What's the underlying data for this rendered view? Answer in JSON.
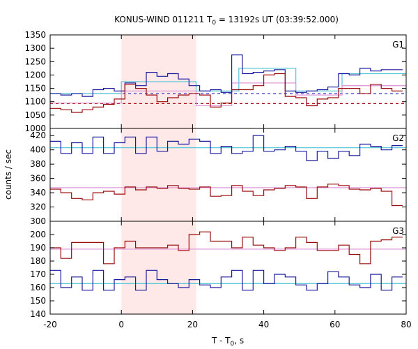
{
  "chart_data": {
    "type": "line",
    "title": "KONUS-WIND 011211 T",
    "title_sub": "0",
    "title_rest": " = 13192s UT (03:39:52.000)",
    "xlabel": "T - T",
    "xlabel_sub": "0",
    "xlabel_rest": ", s",
    "ylabel": "counts / sec",
    "xlim": [
      -20,
      80
    ],
    "x_ticks": [
      -20,
      0,
      20,
      40,
      60,
      80
    ],
    "highlight_range": [
      0,
      21
    ],
    "colors": {
      "highlight": "#ffe8e8",
      "blue_series": "#1a1a9e",
      "red_series": "#9b0b0b",
      "cyan_fit": "#5bc8d8",
      "pink_fit": "#e09ad8",
      "blue_dashed": "#3030c8",
      "red_dashed": "#b01010"
    },
    "bin_edges": [
      -20,
      -17,
      -14,
      -11,
      -8,
      -5,
      -2,
      1,
      4,
      7,
      10,
      13,
      16,
      19,
      22,
      25,
      28,
      31,
      34,
      37,
      40,
      43,
      46,
      49,
      52,
      55,
      58,
      61,
      64,
      67,
      70,
      73,
      76,
      79
    ],
    "panels": [
      {
        "label": "G1",
        "ylim": [
          1000,
          1350
        ],
        "y_ticks": [
          1000,
          1050,
          1100,
          1150,
          1200,
          1250,
          1300,
          1350
        ],
        "series": [
          {
            "color_key": "blue_series",
            "values": [
              1130,
              1125,
              1130,
              1120,
              1145,
              1150,
              1140,
              1170,
              1160,
              1210,
              1195,
              1205,
              1185,
              1160,
              1140,
              1145,
              1135,
              1275,
              1205,
              1210,
              1215,
              1220,
              1140,
              1135,
              1140,
              1145,
              1155,
              1205,
              1200,
              1225,
              1215,
              1220,
              1220
            ]
          },
          {
            "color_key": "red_series",
            "values": [
              1075,
              1070,
              1060,
              1070,
              1080,
              1090,
              1110,
              1165,
              1150,
              1125,
              1100,
              1115,
              1125,
              1130,
              1125,
              1080,
              1095,
              1145,
              1145,
              1160,
              1200,
              1205,
              1120,
              1115,
              1085,
              1110,
              1115,
              1150,
              1150,
              1130,
              1165,
              1150,
              1140
            ]
          }
        ],
        "fits": [
          {
            "color_key": "cyan_fit",
            "segments": [
              [
                -20,
                0,
                1130
              ],
              [
                0,
                21,
                1175
              ],
              [
                21,
                33,
                1140
              ],
              [
                33,
                49,
                1225
              ],
              [
                49,
                62,
                1140
              ],
              [
                62,
                80,
                1205
              ]
            ]
          },
          {
            "color_key": "pink_fit",
            "segments": [
              [
                -20,
                0,
                1095
              ],
              [
                0,
                21,
                1140
              ],
              [
                21,
                31,
                1085
              ],
              [
                31,
                49,
                1170
              ],
              [
                49,
                62,
                1125
              ],
              [
                62,
                80,
                1160
              ]
            ]
          }
        ],
        "dashed": [
          {
            "color_key": "blue_dashed",
            "y": 1130
          },
          {
            "color_key": "red_dashed",
            "y": 1093
          }
        ]
      },
      {
        "label": "G2",
        "ylim": [
          300,
          430
        ],
        "y_ticks": [
          300,
          320,
          340,
          360,
          380,
          400,
          420
        ],
        "series": [
          {
            "color_key": "blue_series",
            "values": [
              412,
              395,
              410,
              395,
              418,
              395,
              410,
              418,
              395,
              418,
              398,
              412,
              408,
              415,
              412,
              395,
              405,
              395,
              398,
              420,
              398,
              400,
              405,
              398,
              385,
              398,
              388,
              398,
              392,
              408,
              405,
              400,
              406
            ]
          },
          {
            "color_key": "red_series",
            "values": [
              345,
              340,
              332,
              330,
              340,
              342,
              338,
              348,
              344,
              348,
              346,
              350,
              346,
              345,
              348,
              335,
              336,
              350,
              342,
              336,
              344,
              346,
              350,
              348,
              332,
              348,
              352,
              350,
              345,
              344,
              346,
              342,
              322
            ]
          }
        ],
        "fits": [
          {
            "color_key": "cyan_fit",
            "segments": [
              [
                -20,
                80,
                403
              ]
            ]
          },
          {
            "color_key": "pink_fit",
            "segments": [
              [
                -20,
                80,
                347
              ]
            ]
          }
        ],
        "dashed": []
      },
      {
        "label": "G3",
        "ylim": [
          140,
          210
        ],
        "y_ticks": [
          140,
          150,
          160,
          170,
          180,
          190,
          200
        ],
        "series": [
          {
            "color_key": "red_series",
            "values": [
              190,
              182,
              194,
              194,
              194,
              178,
              190,
              195,
              190,
              190,
              190,
              192,
              188,
              200,
              202,
              195,
              195,
              190,
              198,
              192,
              190,
              188,
              190,
              198,
              194,
              188,
              188,
              192,
              185,
              178,
              195,
              196,
              198
            ]
          },
          {
            "color_key": "blue_series",
            "values": [
              173,
              160,
              168,
              158,
              173,
              158,
              166,
              168,
              158,
              173,
              166,
              163,
              160,
              166,
              162,
              160,
              168,
              173,
              158,
              173,
              163,
              170,
              168,
              162,
              158,
              163,
              172,
              168,
              162,
              160,
              170,
              158,
              168
            ]
          }
        ],
        "fits": [
          {
            "color_key": "pink_fit",
            "segments": [
              [
                -20,
                80,
                189
              ]
            ]
          },
          {
            "color_key": "cyan_fit",
            "segments": [
              [
                -20,
                80,
                163
              ]
            ]
          }
        ],
        "dashed": []
      }
    ]
  }
}
